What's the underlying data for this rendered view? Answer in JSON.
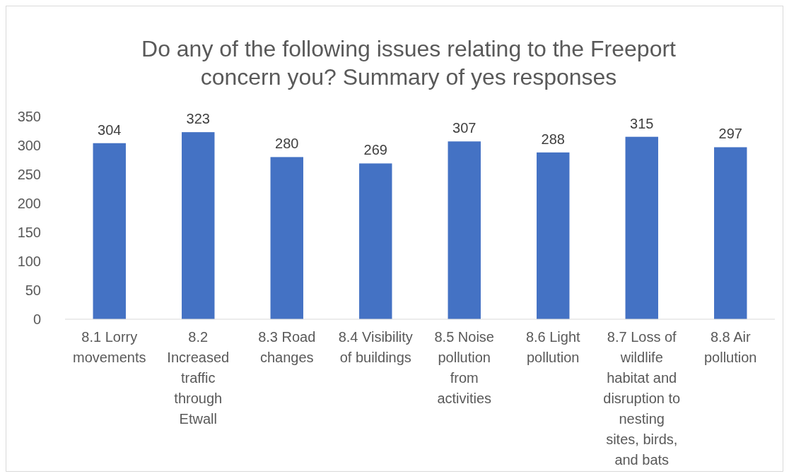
{
  "chart_data": {
    "type": "bar",
    "title": "Do any of the following issues relating to the Freeport concern you? Summary of yes responses",
    "categories": [
      "8.1 Lorry movements",
      "8.2 Increased traffic through Etwall",
      "8.3 Road changes",
      "8.4 Visibility of buildings",
      "8.5 Noise pollution from activities",
      "8.6 Light pollution",
      "8.7 Loss of wildlife habitat and disruption to nesting sites, birds, and bats",
      "8.8 Air pollution"
    ],
    "values": [
      304,
      323,
      280,
      269,
      307,
      288,
      315,
      297
    ],
    "color": "#4472c4",
    "ylim": [
      0,
      350
    ],
    "yticks": [
      0,
      50,
      100,
      150,
      200,
      250,
      300,
      350
    ],
    "data_labels": true,
    "grid": false
  }
}
